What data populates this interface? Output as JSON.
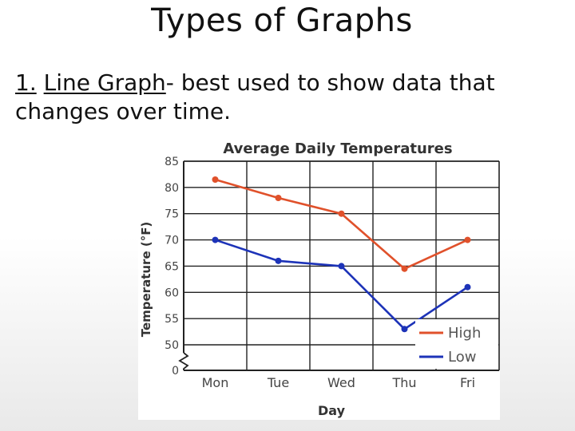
{
  "slide": {
    "title": "Types of Graphs",
    "item_number": "1.",
    "item_term": "Line Graph",
    "item_rest": "- best used to show data that changes over time."
  },
  "chart_data": {
    "type": "line",
    "title": "Average Daily Temperatures",
    "xlabel": "Day",
    "ylabel": "Temperature (°F)",
    "categories": [
      "Mon",
      "Tue",
      "Wed",
      "Thu",
      "Fri"
    ],
    "y_ticks": [
      "0",
      "50",
      "55",
      "60",
      "65",
      "70",
      "75",
      "80",
      "85"
    ],
    "ylim": [
      50,
      85
    ],
    "axis_break": true,
    "grid": true,
    "legend_position": "bottom-right",
    "series": [
      {
        "name": "High",
        "color": "#e0512b",
        "values": [
          81.5,
          78,
          75,
          64.5,
          70
        ]
      },
      {
        "name": "Low",
        "color": "#1d33b8",
        "values": [
          70,
          66,
          65,
          53,
          61
        ]
      }
    ]
  }
}
